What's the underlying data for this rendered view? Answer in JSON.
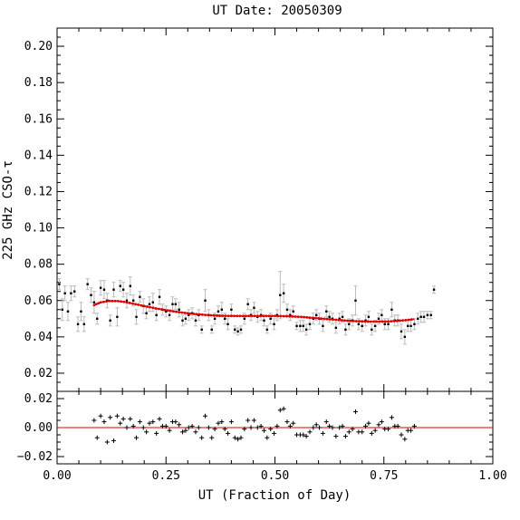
{
  "chart_data": {
    "type": "scatter",
    "title": "UT Date: 20050309",
    "xlabel": "UT (Fraction of Day)",
    "ylabel": "225 GHz CSO-τ",
    "xlim": [
      0,
      1
    ],
    "x_ticks": [
      "0.00",
      "0.25",
      "0.50",
      "0.75",
      "1.00"
    ],
    "top_panel": {
      "ylim": [
        0.01,
        0.21
      ],
      "y_ticks": [
        "0.02",
        "0.04",
        "0.06",
        "0.08",
        "0.10",
        "0.12",
        "0.14",
        "0.16",
        "0.18",
        "0.20"
      ],
      "series": [
        {
          "type": "scatter_errorbar",
          "color": "#000000",
          "error_color": "#bbbbbb",
          "x": [
            0.005,
            0.012,
            0.018,
            0.025,
            0.032,
            0.04,
            0.048,
            0.055,
            0.062,
            0.07,
            0.078,
            0.085,
            0.092,
            0.1,
            0.108,
            0.115,
            0.122,
            0.13,
            0.138,
            0.145,
            0.152,
            0.16,
            0.168,
            0.175,
            0.182,
            0.19,
            0.198,
            0.205,
            0.212,
            0.22,
            0.228,
            0.235,
            0.242,
            0.25,
            0.258,
            0.265,
            0.272,
            0.28,
            0.288,
            0.295,
            0.302,
            0.31,
            0.318,
            0.325,
            0.332,
            0.34,
            0.348,
            0.355,
            0.362,
            0.37,
            0.378,
            0.385,
            0.392,
            0.4,
            0.408,
            0.415,
            0.422,
            0.43,
            0.438,
            0.445,
            0.452,
            0.46,
            0.468,
            0.475,
            0.482,
            0.49,
            0.498,
            0.505,
            0.512,
            0.52,
            0.528,
            0.535,
            0.542,
            0.55,
            0.558,
            0.565,
            0.572,
            0.58,
            0.588,
            0.595,
            0.602,
            0.61,
            0.618,
            0.625,
            0.632,
            0.64,
            0.648,
            0.655,
            0.662,
            0.67,
            0.678,
            0.685,
            0.692,
            0.7,
            0.708,
            0.715,
            0.722,
            0.73,
            0.738,
            0.745,
            0.752,
            0.76,
            0.768,
            0.775,
            0.782,
            0.79,
            0.798,
            0.805,
            0.812,
            0.82,
            0.828,
            0.835,
            0.842,
            0.85,
            0.858,
            0.865
          ],
          "y": [
            0.069,
            0.055,
            0.064,
            0.054,
            0.064,
            0.065,
            0.047,
            0.054,
            0.047,
            0.069,
            0.063,
            0.059,
            0.05,
            0.067,
            0.066,
            0.06,
            0.049,
            0.066,
            0.051,
            0.068,
            0.066,
            0.06,
            0.068,
            0.06,
            0.051,
            0.062,
            0.057,
            0.053,
            0.058,
            0.059,
            0.052,
            0.062,
            0.055,
            0.054,
            0.052,
            0.058,
            0.058,
            0.055,
            0.049,
            0.05,
            0.052,
            0.053,
            0.049,
            0.052,
            0.044,
            0.06,
            0.052,
            0.044,
            0.05,
            0.054,
            0.055,
            0.05,
            0.047,
            0.055,
            0.044,
            0.043,
            0.044,
            0.05,
            0.058,
            0.052,
            0.056,
            0.051,
            0.052,
            0.049,
            0.044,
            0.05,
            0.047,
            0.052,
            0.063,
            0.064,
            0.055,
            0.052,
            0.054,
            0.046,
            0.046,
            0.046,
            0.044,
            0.047,
            0.05,
            0.052,
            0.05,
            0.046,
            0.054,
            0.051,
            0.05,
            0.045,
            0.05,
            0.051,
            0.044,
            0.047,
            0.049,
            0.06,
            0.047,
            0.046,
            0.049,
            0.051,
            0.044,
            0.046,
            0.05,
            0.052,
            0.047,
            0.047,
            0.055,
            0.049,
            0.049,
            0.043,
            0.04,
            0.046,
            0.046,
            0.047,
            0.05,
            0.051,
            0.051,
            0.052,
            0.052,
            0.066
          ],
          "err": [
            0.003,
            0.006,
            0.004,
            0.005,
            0.004,
            0.003,
            0.004,
            0.005,
            0.004,
            0.003,
            0.004,
            0.006,
            0.003,
            0.004,
            0.005,
            0.004,
            0.003,
            0.004,
            0.005,
            0.003,
            0.004,
            0.004,
            0.005,
            0.003,
            0.004,
            0.003,
            0.004,
            0.003,
            0.004,
            0.005,
            0.003,
            0.004,
            0.003,
            0.003,
            0.003,
            0.004,
            0.003,
            0.004,
            0.003,
            0.003,
            0.003,
            0.003,
            0.003,
            0.003,
            0.002,
            0.006,
            0.003,
            0.002,
            0.003,
            0.003,
            0.004,
            0.003,
            0.003,
            0.003,
            0.002,
            0.002,
            0.002,
            0.003,
            0.003,
            0.003,
            0.003,
            0.003,
            0.003,
            0.003,
            0.002,
            0.003,
            0.003,
            0.003,
            0.013,
            0.005,
            0.003,
            0.003,
            0.003,
            0.002,
            0.003,
            0.003,
            0.003,
            0.003,
            0.003,
            0.003,
            0.003,
            0.003,
            0.003,
            0.003,
            0.003,
            0.003,
            0.003,
            0.003,
            0.003,
            0.003,
            0.003,
            0.008,
            0.003,
            0.003,
            0.003,
            0.003,
            0.003,
            0.003,
            0.003,
            0.003,
            0.003,
            0.003,
            0.004,
            0.003,
            0.003,
            0.004,
            0.004,
            0.003,
            0.003,
            0.003,
            0.003,
            0.003,
            0.003,
            0.002,
            0.002,
            0.002
          ]
        },
        {
          "type": "fit_line",
          "color": "#e00000",
          "x": [
            0.085,
            0.1,
            0.12,
            0.14,
            0.16,
            0.18,
            0.2,
            0.22,
            0.24,
            0.26,
            0.28,
            0.3,
            0.32,
            0.34,
            0.36,
            0.38,
            0.4,
            0.42,
            0.44,
            0.46,
            0.48,
            0.5,
            0.52,
            0.54,
            0.56,
            0.58,
            0.6,
            0.62,
            0.64,
            0.66,
            0.68,
            0.7,
            0.72,
            0.74,
            0.76,
            0.78,
            0.8,
            0.82
          ],
          "y": [
            0.0575,
            0.059,
            0.0598,
            0.0597,
            0.059,
            0.058,
            0.057,
            0.056,
            0.0551,
            0.0543,
            0.0536,
            0.053,
            0.0525,
            0.0521,
            0.0518,
            0.0516,
            0.0515,
            0.0515,
            0.0515,
            0.0515,
            0.0515,
            0.0515,
            0.0514,
            0.0512,
            0.051,
            0.0506,
            0.0502,
            0.0498,
            0.0494,
            0.049,
            0.0487,
            0.0485,
            0.0484,
            0.0484,
            0.0485,
            0.0488,
            0.0492,
            0.0498
          ]
        }
      ]
    },
    "bottom_panel": {
      "ylim": [
        -0.025,
        0.025
      ],
      "y_ticks": [
        "−0.02",
        "0.00",
        "0.02"
      ],
      "zero_line_color": "#e00000",
      "series": [
        {
          "type": "scatter_plus",
          "color": "#000000",
          "x": [
            0.085,
            0.092,
            0.1,
            0.108,
            0.115,
            0.122,
            0.13,
            0.138,
            0.145,
            0.152,
            0.16,
            0.168,
            0.175,
            0.182,
            0.19,
            0.198,
            0.205,
            0.212,
            0.22,
            0.228,
            0.235,
            0.242,
            0.25,
            0.258,
            0.265,
            0.272,
            0.28,
            0.288,
            0.295,
            0.302,
            0.31,
            0.318,
            0.325,
            0.332,
            0.34,
            0.348,
            0.355,
            0.362,
            0.37,
            0.378,
            0.385,
            0.392,
            0.4,
            0.408,
            0.415,
            0.422,
            0.43,
            0.438,
            0.445,
            0.452,
            0.46,
            0.468,
            0.475,
            0.482,
            0.49,
            0.498,
            0.505,
            0.512,
            0.52,
            0.528,
            0.535,
            0.542,
            0.55,
            0.558,
            0.565,
            0.572,
            0.58,
            0.588,
            0.595,
            0.602,
            0.61,
            0.618,
            0.625,
            0.632,
            0.64,
            0.648,
            0.655,
            0.662,
            0.67,
            0.678,
            0.685,
            0.692,
            0.7,
            0.708,
            0.715,
            0.722,
            0.73,
            0.738,
            0.745,
            0.752,
            0.76,
            0.768,
            0.775,
            0.782,
            0.79,
            0.798,
            0.805,
            0.812,
            0.82
          ],
          "y": [
            0.005,
            -0.007,
            0.008,
            0.004,
            -0.01,
            0.007,
            -0.009,
            0.008,
            0.003,
            0.006,
            0.0,
            0.006,
            0.001,
            -0.007,
            0.004,
            0.0,
            -0.003,
            0.003,
            0.004,
            -0.004,
            0.006,
            0.001,
            0.001,
            -0.002,
            0.004,
            0.004,
            0.002,
            -0.003,
            -0.002,
            0.0,
            0.001,
            -0.003,
            0.0,
            -0.007,
            0.008,
            0.0,
            -0.007,
            -0.001,
            0.003,
            0.004,
            -0.001,
            -0.004,
            0.004,
            -0.007,
            -0.008,
            -0.007,
            -0.001,
            0.005,
            0.0,
            0.005,
            0.0,
            0.001,
            -0.002,
            -0.007,
            -0.001,
            -0.004,
            0.001,
            0.012,
            0.013,
            0.004,
            0.001,
            0.003,
            -0.005,
            -0.005,
            -0.005,
            -0.006,
            -0.003,
            0.0,
            0.002,
            0.0,
            -0.004,
            0.004,
            0.001,
            0.0,
            -0.006,
            0.0,
            0.001,
            -0.006,
            -0.003,
            -0.001,
            0.011,
            -0.003,
            -0.003,
            0.001,
            0.003,
            -0.004,
            -0.002,
            0.002,
            0.004,
            -0.001,
            -0.001,
            0.007,
            0.001,
            0.001,
            -0.005,
            -0.008,
            -0.002,
            -0.002,
            0.001
          ]
        }
      ]
    }
  }
}
